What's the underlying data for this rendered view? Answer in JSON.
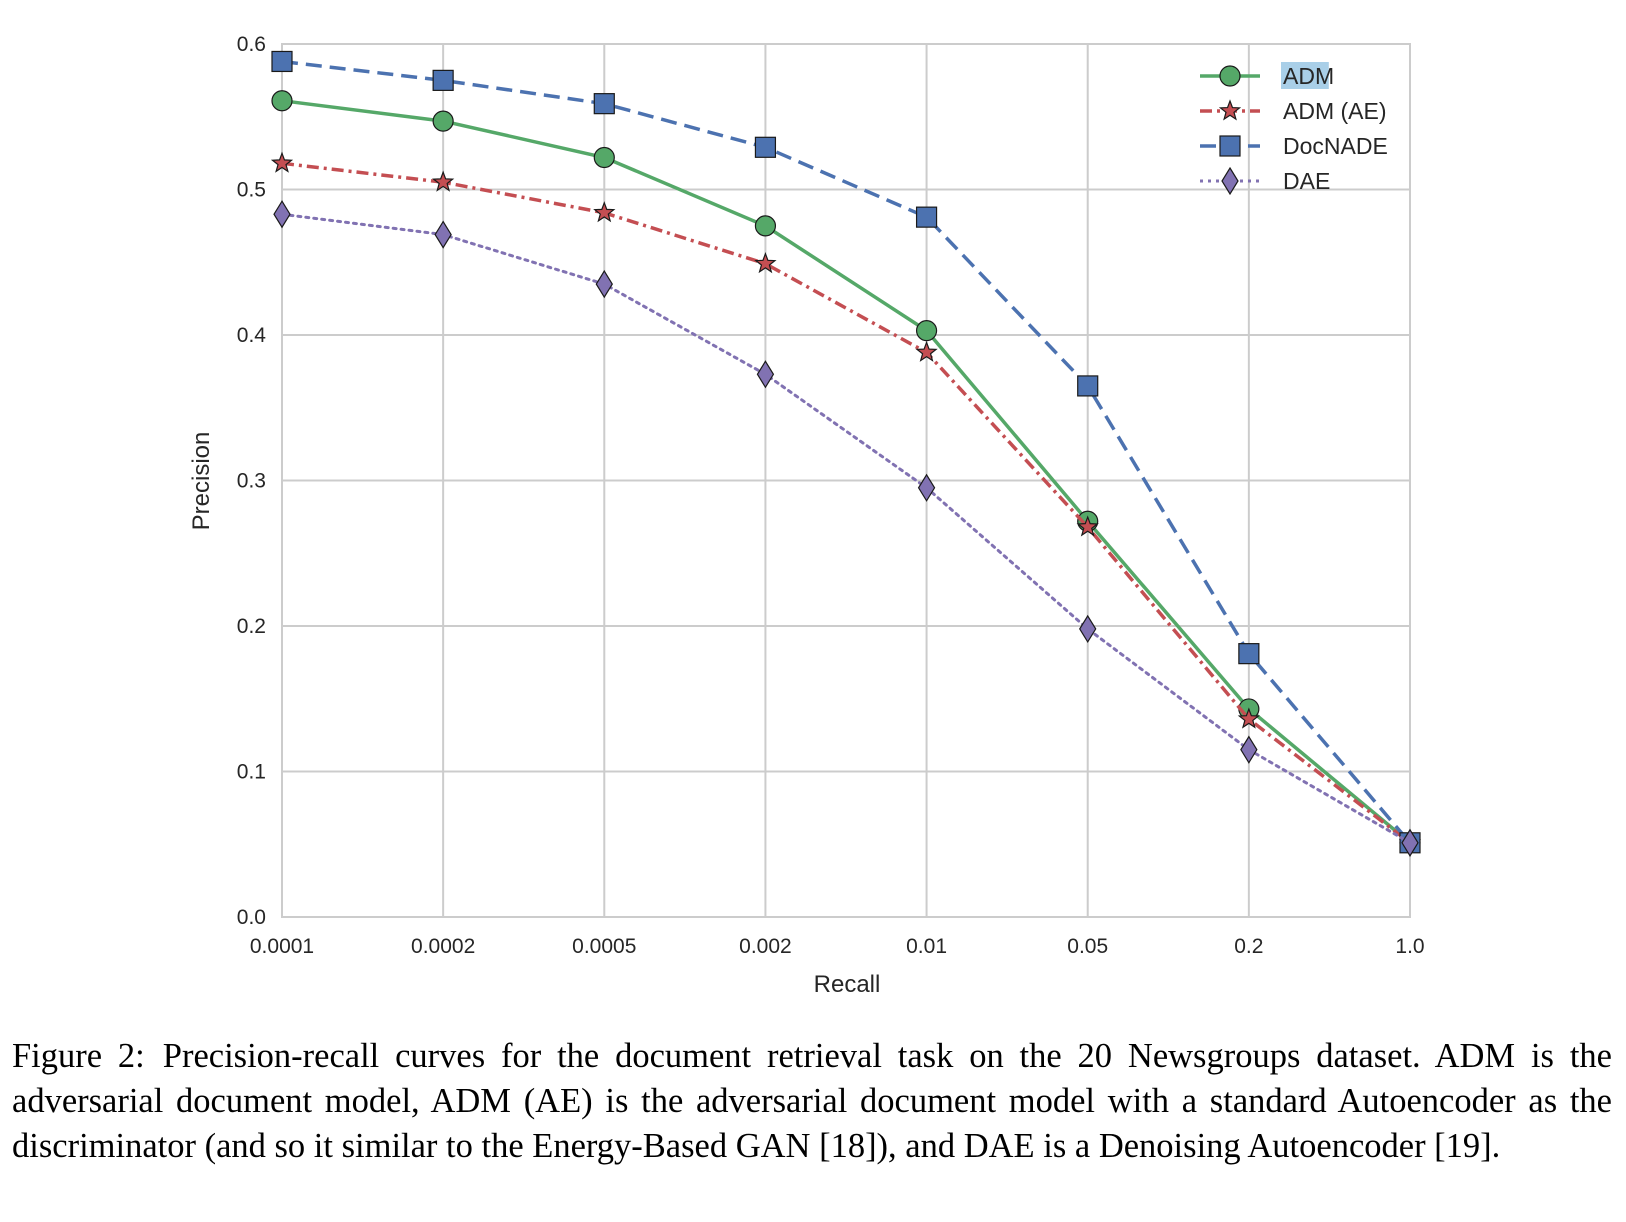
{
  "chart_data": {
    "type": "line",
    "x": [
      "0.0001",
      "0.0002",
      "0.0005",
      "0.002",
      "0.01",
      "0.05",
      "0.2",
      "1.0"
    ],
    "xlabel": "Recall",
    "ylabel": "Precision",
    "ylim": [
      0.0,
      0.6
    ],
    "yticks": [
      "0.0",
      "0.1",
      "0.2",
      "0.3",
      "0.4",
      "0.5",
      "0.6"
    ],
    "grid": true,
    "legend_position": "top-right",
    "series": [
      {
        "name": "ADM",
        "values": [
          0.561,
          0.547,
          0.522,
          0.475,
          0.403,
          0.272,
          0.143,
          0.051
        ],
        "color": "#55a868",
        "line_style": "solid",
        "marker": "circle",
        "highlighted": true
      },
      {
        "name": "ADM (AE)",
        "values": [
          0.518,
          0.505,
          0.484,
          0.449,
          0.388,
          0.268,
          0.136,
          0.051
        ],
        "color": "#c44e52",
        "line_style": "dashdot",
        "marker": "star"
      },
      {
        "name": "DocNADE",
        "values": [
          0.588,
          0.575,
          0.559,
          0.529,
          0.481,
          0.365,
          0.181,
          0.051
        ],
        "color": "#4c72b0",
        "line_style": "dashed",
        "marker": "square"
      },
      {
        "name": "DAE",
        "values": [
          0.483,
          0.469,
          0.435,
          0.373,
          0.295,
          0.198,
          0.115,
          0.051
        ],
        "color": "#8172b2",
        "line_style": "dotted",
        "marker": "diamond"
      }
    ],
    "colors": {
      "grid": "#cccccc",
      "legend_highlight": "#a9cfe8"
    }
  },
  "caption": {
    "label": "Figure 2:",
    "text": "Precision-recall curves for the document retrieval task on the 20 Newsgroups dataset. ADM is the adversarial document model, ADM (AE) is the adversarial document model with a standard Autoencoder as the discriminator (and so it similar to the Energy-Based GAN [18]), and DAE is a Denoising Autoencoder [19]."
  }
}
